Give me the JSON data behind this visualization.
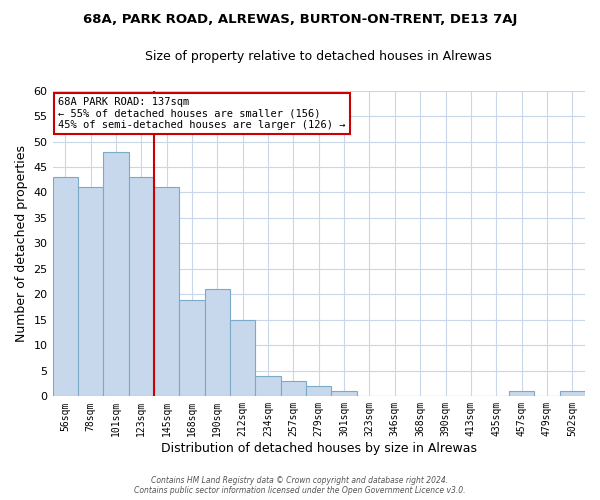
{
  "title": "68A, PARK ROAD, ALREWAS, BURTON-ON-TRENT, DE13 7AJ",
  "subtitle": "Size of property relative to detached houses in Alrewas",
  "xlabel": "Distribution of detached houses by size in Alrewas",
  "ylabel": "Number of detached properties",
  "bar_labels": [
    "56sqm",
    "78sqm",
    "101sqm",
    "123sqm",
    "145sqm",
    "168sqm",
    "190sqm",
    "212sqm",
    "234sqm",
    "257sqm",
    "279sqm",
    "301sqm",
    "323sqm",
    "346sqm",
    "368sqm",
    "390sqm",
    "413sqm",
    "435sqm",
    "457sqm",
    "479sqm",
    "502sqm"
  ],
  "bar_values": [
    43,
    41,
    48,
    43,
    41,
    19,
    21,
    15,
    4,
    3,
    2,
    1,
    0,
    0,
    0,
    0,
    0,
    0,
    1,
    0,
    1
  ],
  "bar_color": "#c8d8ec",
  "bar_edge_color": "#7aaac8",
  "vline_x_idx": 3.5,
  "vline_color": "#cc0000",
  "ylim": [
    0,
    60
  ],
  "yticks": [
    0,
    5,
    10,
    15,
    20,
    25,
    30,
    35,
    40,
    45,
    50,
    55,
    60
  ],
  "annotation_title": "68A PARK ROAD: 137sqm",
  "annotation_line1": "← 55% of detached houses are smaller (156)",
  "annotation_line2": "45% of semi-detached houses are larger (126) →",
  "annotation_box_color": "#ffffff",
  "annotation_box_edge": "#cc0000",
  "footer1": "Contains HM Land Registry data © Crown copyright and database right 2024.",
  "footer2": "Contains public sector information licensed under the Open Government Licence v3.0.",
  "bg_color": "#ffffff",
  "grid_color": "#c8d8e8"
}
